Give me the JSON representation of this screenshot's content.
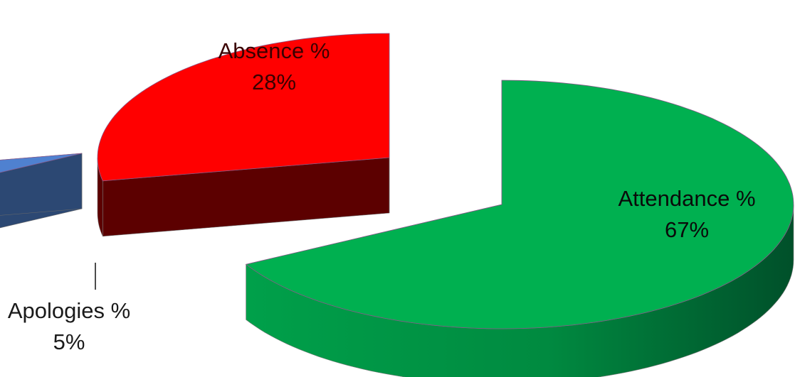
{
  "chart_data": {
    "type": "pie",
    "title": "",
    "slices": [
      {
        "category": "Attendance %",
        "value": 67,
        "value_label": "67%",
        "top_color": "#00b050",
        "side_color": "#00823c",
        "label_color": "#0a0a0a"
      },
      {
        "category": "Apologies %",
        "value": 5,
        "value_label": "5%",
        "top_color": "#4f81d0",
        "side_color": "#2c4873",
        "label_color": "#1a1a1a"
      },
      {
        "category": "Absence %",
        "value": 28,
        "value_label": "28%",
        "top_color": "#ff0000",
        "side_color": "#5c0000",
        "label_color": "#3a0000"
      }
    ],
    "exploded": true,
    "three_d": true,
    "legend": "none"
  }
}
